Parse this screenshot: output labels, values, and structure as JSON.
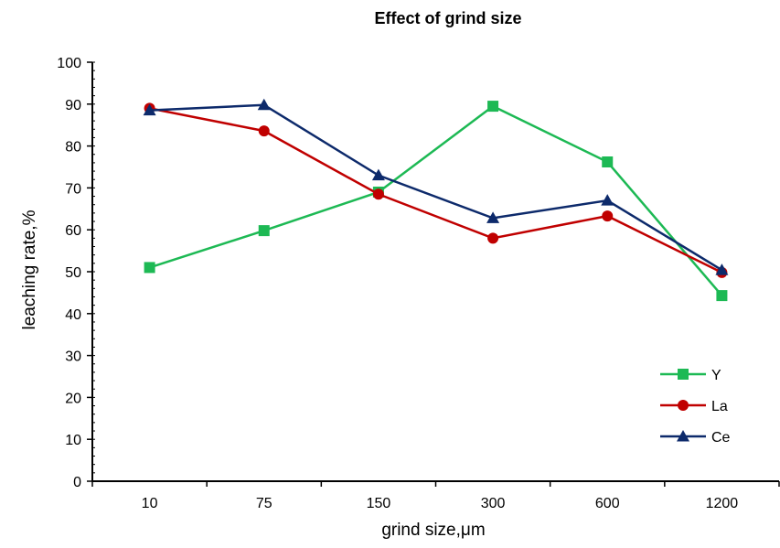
{
  "chart_data": {
    "type": "line",
    "title": "Effect of grind size",
    "xlabel": "grind size,μm",
    "ylabel": "leaching rate,%",
    "categories": [
      "10",
      "75",
      "150",
      "300",
      "600",
      "1200"
    ],
    "ylim": [
      0,
      100
    ],
    "yticks": [
      "0",
      "10",
      "20",
      "30",
      "40",
      "50",
      "60",
      "70",
      "80",
      "90",
      "100"
    ],
    "legend_position": "bottom-right",
    "grid": false,
    "series": [
      {
        "name": "Y",
        "color": "#1db954",
        "marker": "square",
        "values": [
          51,
          59.8,
          69,
          89.5,
          76.2,
          44.3
        ]
      },
      {
        "name": "La",
        "color": "#c00000",
        "marker": "circle",
        "values": [
          89,
          83.6,
          68.5,
          58,
          63.3,
          49.8
        ]
      },
      {
        "name": "Ce",
        "color": "#0d2a6b",
        "marker": "triangle",
        "values": [
          88.5,
          89.8,
          73,
          62.8,
          67,
          50.4
        ]
      }
    ]
  }
}
